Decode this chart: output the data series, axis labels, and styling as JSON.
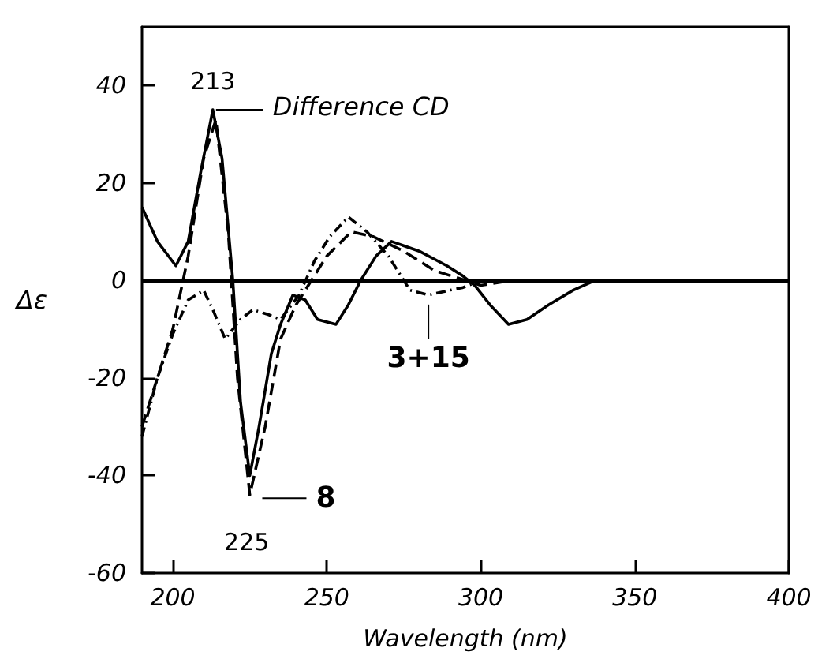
{
  "chart_data": {
    "type": "line",
    "xlabel": "Wavelength (nm)",
    "ylabel": "Δε",
    "xlim": [
      190,
      400
    ],
    "xticks": [
      200,
      250,
      300,
      350,
      400
    ],
    "ylim": [
      -60,
      52
    ],
    "yticks": [
      -60,
      -40,
      -20,
      0,
      20,
      40
    ],
    "grid": false,
    "marker": "none",
    "ref_lines": [
      {
        "axis": "y",
        "value": 0
      }
    ],
    "series": [
      {
        "color": "#000000",
        "line_style": "solid",
        "x": [
          190,
          195,
          201,
          205,
          209,
          213,
          216,
          219.5,
          222,
          225,
          228,
          232,
          235,
          239,
          243,
          247,
          253,
          257,
          261,
          266,
          271,
          280,
          289,
          294,
          298,
          303,
          309,
          315,
          322,
          330,
          337,
          350,
          400
        ],
        "values": [
          15,
          8,
          3,
          8,
          22,
          35,
          25,
          0,
          -25,
          -40,
          -30,
          -15,
          -9,
          -3,
          -4,
          -8,
          -9,
          -5,
          0,
          5,
          8,
          6,
          3,
          1,
          -1,
          -5,
          -9,
          -8,
          -5,
          -2,
          0,
          0,
          0
        ]
      },
      {
        "color": "#000000",
        "line_style": "dashed",
        "x": [
          190,
          195,
          200,
          205,
          210,
          214,
          218,
          221,
          225,
          230,
          235,
          240,
          245,
          250,
          258,
          265,
          275,
          285,
          295,
          300,
          310,
          400
        ],
        "values": [
          -30,
          -20,
          -10,
          5,
          25,
          33,
          10,
          -20,
          -44,
          -30,
          -12,
          -5,
          0,
          5,
          10,
          9,
          6,
          2,
          0,
          -1,
          0,
          0
        ]
      },
      {
        "color": "#000000",
        "line_style": "dotted",
        "x": [
          190,
          195,
          200,
          205,
          210,
          213,
          217,
          222,
          226,
          231,
          235,
          241,
          246,
          251,
          257,
          263,
          270,
          277,
          283,
          290,
          294,
          300,
          400
        ],
        "values": [
          -32,
          -20,
          -11,
          -4,
          -2,
          -6,
          -12,
          -8,
          -6,
          -7,
          -8,
          -3,
          4,
          9,
          13,
          10,
          5,
          -2,
          -3,
          -2,
          -1.5,
          0,
          0
        ]
      }
    ],
    "annotations": [
      {
        "text": "213",
        "x": 213,
        "y": 35
      },
      {
        "text": "Difference CD",
        "x": 213,
        "y": 35
      },
      {
        "text": "225",
        "x": 225,
        "y": -44
      },
      {
        "text": "8",
        "x": 227,
        "y": -44
      },
      {
        "text": "3+15",
        "x": 283,
        "y": -3
      }
    ]
  }
}
